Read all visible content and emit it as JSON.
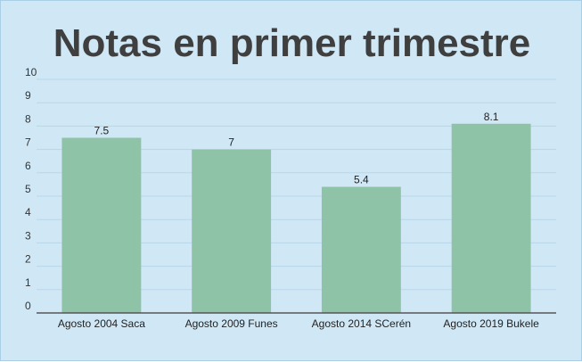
{
  "chart_data": {
    "type": "bar",
    "title": "Notas en primer trimestre",
    "categories": [
      "Agosto 2004 Saca",
      "Agosto 2009 Funes",
      "Agosto 2014 SCerén",
      "Agosto 2019 Bukele"
    ],
    "values": [
      7.5,
      7,
      5.4,
      8.1
    ],
    "data_labels": [
      "7.5",
      "7",
      "5.4",
      "8.1"
    ],
    "y_ticks": [
      0,
      1,
      2,
      3,
      4,
      5,
      6,
      7,
      8,
      9,
      10
    ],
    "ylim": [
      0,
      10
    ],
    "grid": true,
    "legend": "none",
    "colors": {
      "bar": "#8fc3a8",
      "background": "#d0e8f6",
      "grid": "#b7d6e8",
      "axis": "#555555",
      "title": "#3f3f3f"
    }
  }
}
